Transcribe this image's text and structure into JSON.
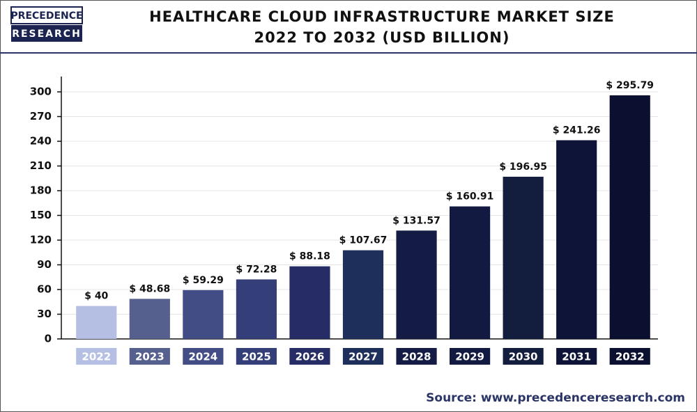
{
  "logo": {
    "line1": "PRECEDENCE",
    "line2": "RESEARCH"
  },
  "chart_data": {
    "type": "bar",
    "title": "HEALTHCARE CLOUD INFRASTRUCTURE MARKET SIZE",
    "subtitle": "2022 TO 2032 (USD BILLION)",
    "categories": [
      "2022",
      "2023",
      "2024",
      "2025",
      "2026",
      "2027",
      "2028",
      "2029",
      "2030",
      "2031",
      "2032"
    ],
    "values": [
      40,
      48.68,
      59.29,
      72.28,
      88.18,
      107.67,
      131.57,
      160.91,
      196.95,
      241.26,
      295.79
    ],
    "value_labels": [
      "$ 40",
      "$ 48.68",
      "$ 59.29",
      "$ 72.28",
      "$ 88.18",
      "$ 107.67",
      "$ 131.57",
      "$ 160.91",
      "$ 196.95",
      "$ 241.26",
      "$ 295.79"
    ],
    "colors": [
      "#b4bfe3",
      "#56608f",
      "#434d85",
      "#343e78",
      "#262d66",
      "#1f2f5c",
      "#141c45",
      "#121a42",
      "#131d3d",
      "#0e1438",
      "#0b1030"
    ],
    "ylim": [
      0,
      300
    ],
    "yticks": [
      0,
      30,
      60,
      90,
      120,
      150,
      180,
      210,
      240,
      270,
      300
    ],
    "grid": true,
    "source": "Source: www.precedenceresearch.com"
  }
}
